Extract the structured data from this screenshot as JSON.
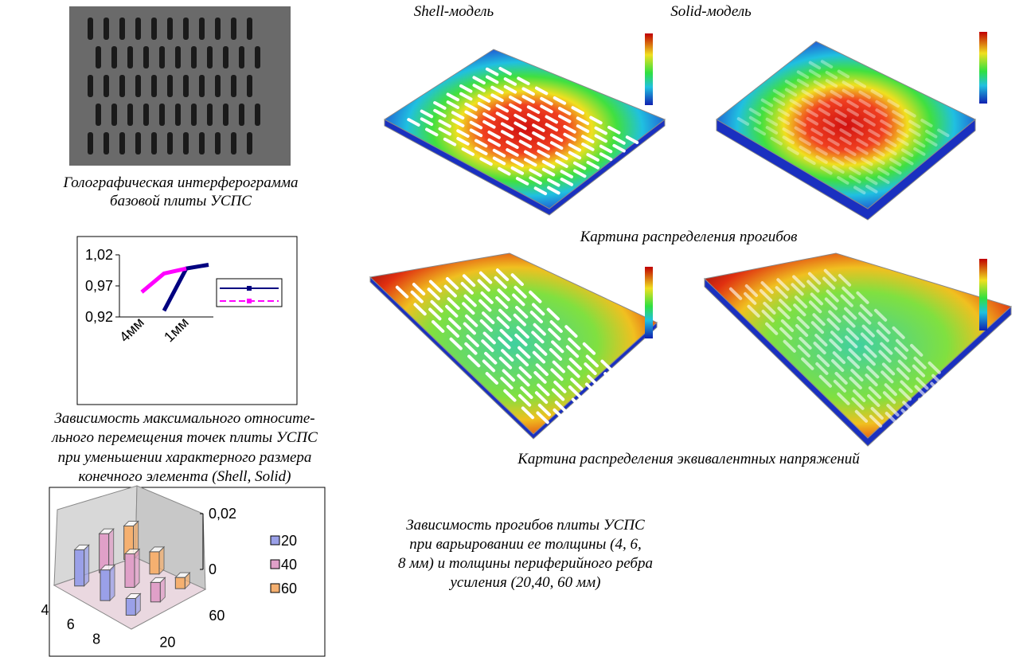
{
  "hologram": {
    "caption": [
      "Голографическая интерферограмма",
      "базовой плиты УСПС"
    ]
  },
  "line_chart": {
    "type": "line",
    "categories": [
      "4мм",
      null,
      "1мм",
      null
    ],
    "ylim": [
      0.92,
      1.02
    ],
    "yticks": [
      {
        "value": 1.02,
        "label": "1,02"
      },
      {
        "value": 0.97,
        "label": "0,97"
      },
      {
        "value": 0.92,
        "label": "0,92"
      }
    ],
    "series": [
      {
        "color": "#000080",
        "values": [
          null,
          0.93,
          0.998,
          1.004
        ]
      },
      {
        "color": "#ff00ff",
        "values": [
          0.96,
          0.99,
          0.998,
          null
        ]
      }
    ],
    "caption": [
      "Зависимость максимального относите-",
      "льного перемещения точек плиты УСПС",
      "при уменьшении характерного размера",
      "конечного элемента (Shell, Solid)"
    ]
  },
  "bar_chart": {
    "type": "bar3d",
    "zlim": [
      0,
      0.02
    ],
    "zticks": [
      {
        "value": 0.02,
        "label": "0,02"
      },
      0
    ],
    "categories": [
      "4",
      "6",
      "8"
    ],
    "depth_labels": [
      "20",
      null,
      "60"
    ],
    "series": [
      {
        "name": "20",
        "color": "#9aa0e8",
        "values": [
          0.013,
          0.011,
          0.006
        ]
      },
      {
        "name": "40",
        "color": "#e0a0c8",
        "values": [
          0.014,
          0.012,
          0.007
        ]
      },
      {
        "name": "60",
        "color": "#f5b070",
        "values": [
          0.012,
          0.008,
          0.004
        ]
      }
    ]
  },
  "fem": {
    "shell_title": "Shell-модель",
    "solid_title": "Solid-модель",
    "deflection_caption": "Картина распределения прогибов",
    "stress_caption": "Картина распределения эквивалентных напряжений"
  },
  "thickness_caption": [
    "Зависимость прогибов плиты УСПС",
    "при варьировании ее толщины (4, 6,",
    "8 мм) и толщины периферийного ребра",
    "усиления (20,40, 60 мм)"
  ]
}
